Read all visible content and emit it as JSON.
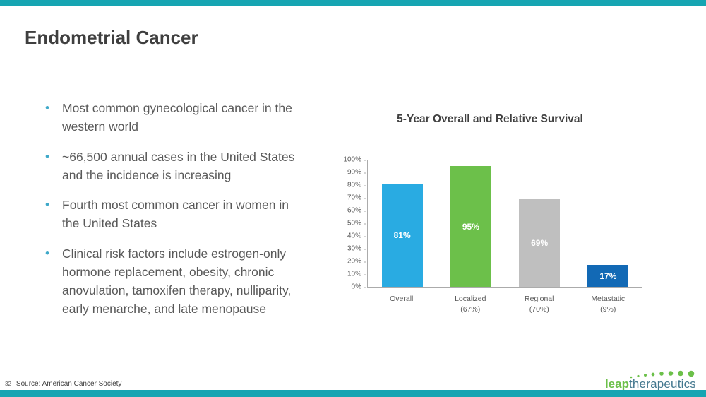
{
  "slide": {
    "title": "Endometrial Cancer",
    "page_number": "32",
    "source": "Source: American Cancer Society"
  },
  "bullets": [
    "Most common gynecological cancer in the western world",
    "~66,500 annual cases in the United States and the incidence is increasing",
    "Fourth most common cancer in women in the United States",
    "Clinical risk factors include estrogen-only hormone replacement, obesity, chronic anovulation, tamoxifen therapy, nulliparity, early menarche, and late menopause"
  ],
  "chart_data": {
    "type": "bar",
    "title": "5-Year Overall and Relative Survival",
    "categories": [
      {
        "label": "Overall",
        "sub": ""
      },
      {
        "label": "Localized",
        "sub": "(67%)"
      },
      {
        "label": "Regional",
        "sub": "(70%)"
      },
      {
        "label": "Metastatic",
        "sub": "(9%)"
      }
    ],
    "values": [
      81,
      95,
      69,
      17
    ],
    "bar_labels": [
      "81%",
      "95%",
      "69%",
      "17%"
    ],
    "bar_colors": [
      "#29ABE2",
      "#6CC04A",
      "#BFBFBF",
      "#1269B5"
    ],
    "ylim": [
      0,
      100
    ],
    "ytick_labels": [
      "100%",
      "90%",
      "80%",
      "70%",
      "60%",
      "50%",
      "40%",
      "30%",
      "20%",
      "10%",
      "0%"
    ],
    "grid": false,
    "legend": false
  },
  "logo": {
    "part1": "leap",
    "part2": "therapeutics"
  },
  "colors": {
    "accent_teal": "#16A5B2",
    "bullet_dot": "#3FA9C9",
    "title_text": "#3F3F3F",
    "body_text": "#595959",
    "logo_green": "#6CC04A",
    "logo_blue": "#44788F"
  }
}
